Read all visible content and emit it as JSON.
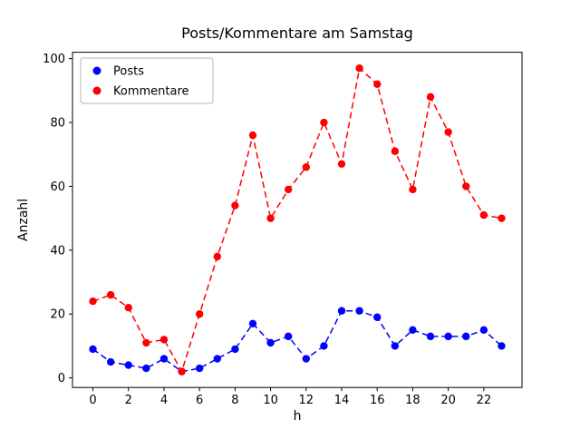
{
  "chart_data": {
    "type": "line",
    "title": "Posts/Kommentare am Samstag",
    "xlabel": "h",
    "ylabel": "Anzahl",
    "x": [
      0,
      1,
      2,
      3,
      4,
      5,
      6,
      7,
      8,
      9,
      10,
      11,
      12,
      13,
      14,
      15,
      16,
      17,
      18,
      19,
      20,
      21,
      22,
      23
    ],
    "series": [
      {
        "name": "Posts",
        "color": "#0000ff",
        "linestyle": "dashed",
        "marker": "circle",
        "values": [
          9,
          5,
          4,
          3,
          6,
          2,
          3,
          6,
          9,
          17,
          11,
          13,
          6,
          10,
          21,
          21,
          19,
          10,
          15,
          13,
          13,
          13,
          15,
          10
        ]
      },
      {
        "name": "Kommentare",
        "color": "#ff0000",
        "linestyle": "dashed",
        "marker": "circle",
        "values": [
          24,
          26,
          22,
          11,
          12,
          2,
          20,
          38,
          54,
          76,
          50,
          59,
          66,
          80,
          67,
          97,
          92,
          71,
          59,
          88,
          77,
          60,
          51,
          50
        ]
      }
    ],
    "xlim": [
      -1.15,
      24.15
    ],
    "ylim": [
      -3,
      102
    ],
    "xticks": [
      0,
      2,
      4,
      6,
      8,
      10,
      12,
      14,
      16,
      18,
      20,
      22
    ],
    "yticks": [
      0,
      20,
      40,
      60,
      80,
      100
    ],
    "grid": false,
    "legend_position": "upper left",
    "legend_entries": [
      "Posts",
      "Kommentare"
    ]
  }
}
